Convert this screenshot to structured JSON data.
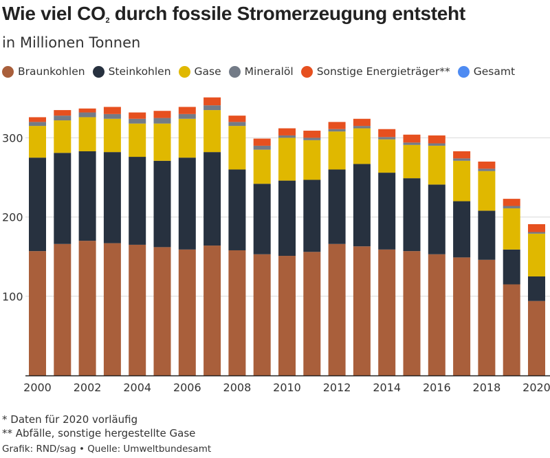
{
  "header": {
    "title_before": "Wie viel CO",
    "title_sub": "2",
    "title_after": " durch fossile Stromerzeugung entsteht",
    "subtitle": "in Millionen Tonnen"
  },
  "legend": [
    {
      "label": "Braunkohlen",
      "color": "#a95f3b"
    },
    {
      "label": "Steinkohlen",
      "color": "#27313f"
    },
    {
      "label": "Gase",
      "color": "#e0b800"
    },
    {
      "label": "Mineralöl",
      "color": "#737b87"
    },
    {
      "label": "Sonstige Energieträger**",
      "color": "#e6501f"
    },
    {
      "label": "Gesamt",
      "color": "#4e8bf2"
    }
  ],
  "footer": {
    "note1": "* Daten für 2020 vorläufig",
    "note2": "** Abfälle, sonstige hergestellte Gase",
    "credit": "Grafik: RND/sag • Quelle: Umweltbundesamt"
  },
  "chart_data": {
    "type": "bar",
    "stacked": true,
    "categories": [
      "2000",
      "2001",
      "2002",
      "2003",
      "2004",
      "2005",
      "2006",
      "2007",
      "2008",
      "2009",
      "2010",
      "2011",
      "2012",
      "2013",
      "2014",
      "2015",
      "2016",
      "2017",
      "2018",
      "2019",
      "2020"
    ],
    "x_tick_labels": [
      "2000",
      "2002",
      "2004",
      "2006",
      "2008",
      "2010",
      "2012",
      "2014",
      "2016",
      "2018",
      "2020"
    ],
    "y_ticks": [
      100,
      200,
      300
    ],
    "ylim": [
      0,
      355
    ],
    "grid": true,
    "series": [
      {
        "name": "Braunkohlen",
        "color": "#a95f3b",
        "values": [
          157,
          166,
          170,
          167,
          165,
          162,
          159,
          164,
          158,
          153,
          151,
          156,
          166,
          163,
          159,
          157,
          153,
          149,
          146,
          115,
          94
        ]
      },
      {
        "name": "Steinkohlen",
        "color": "#27313f",
        "values": [
          118,
          115,
          113,
          115,
          111,
          109,
          116,
          118,
          102,
          89,
          95,
          91,
          94,
          104,
          97,
          92,
          88,
          71,
          62,
          44,
          31
        ]
      },
      {
        "name": "Gase",
        "color": "#e0b800",
        "values": [
          40,
          41,
          43,
          42,
          42,
          47,
          49,
          53,
          55,
          43,
          54,
          50,
          48,
          45,
          42,
          42,
          49,
          51,
          50,
          52,
          54
        ]
      },
      {
        "name": "Mineralöl",
        "color": "#737b87",
        "values": [
          5,
          6,
          6,
          6,
          6,
          7,
          6,
          6,
          5,
          5,
          3,
          3,
          3,
          3,
          3,
          3,
          3,
          3,
          3,
          3,
          2
        ]
      },
      {
        "name": "Sonstige Energieträger**",
        "color": "#e6501f",
        "values": [
          6,
          7,
          5,
          9,
          8,
          9,
          9,
          10,
          8,
          9,
          9,
          9,
          9,
          9,
          10,
          10,
          10,
          9,
          9,
          9,
          10
        ]
      }
    ]
  }
}
